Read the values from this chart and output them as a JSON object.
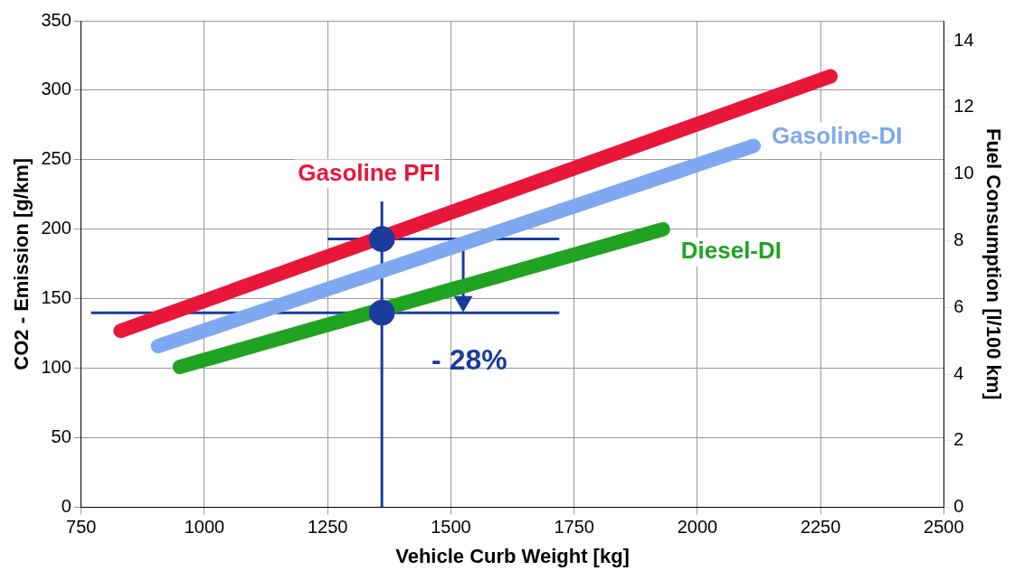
{
  "chart_data": {
    "type": "line",
    "xlabel": "Vehicle Curb Weight [kg]",
    "ylabel": "CO2 - Emission [g/km]",
    "y2label": "Fuel Consumption [l/100 km]",
    "xlim": [
      750,
      2500
    ],
    "xticks": [
      750,
      1000,
      1250,
      1500,
      1750,
      2000,
      2250,
      2500
    ],
    "ylim": [
      0,
      350
    ],
    "yticks": [
      0,
      50,
      100,
      150,
      200,
      250,
      300,
      350
    ],
    "y2lim": [
      0,
      14.6
    ],
    "y2ticks": [
      0,
      2,
      4,
      6,
      8,
      10,
      12,
      14
    ],
    "grid": true,
    "legend": false,
    "marker": "none",
    "line_style": "solid",
    "series": [
      {
        "name": "Gasoline PFI",
        "color": "#e8173a",
        "x": [
          830,
          2270
        ],
        "values": [
          127,
          310
        ]
      },
      {
        "name": "Gasoline-DI",
        "color": "#80a8f0",
        "x": [
          906,
          2114
        ],
        "values": [
          116,
          260
        ]
      },
      {
        "name": "Diesel-DI",
        "color": "#21a322",
        "x": [
          950,
          1930
        ],
        "values": [
          101,
          200
        ]
      },
      {
        "type": "line",
        "color": "#1b3c9c",
        "x": [
          1360,
          1360
        ],
        "values": [
          0,
          220
        ]
      },
      {
        "type": "line",
        "color": "#1b3c9c",
        "x": [
          1250,
          1720
        ],
        "values": [
          193,
          193
        ]
      },
      {
        "type": "line",
        "color": "#1b3c9c",
        "x": [
          770,
          1720
        ],
        "values": [
          140,
          140
        ]
      },
      {
        "type": "line",
        "color": "#1b3c9c",
        "marker": "triangle",
        "x": [
          1525,
          1525
        ],
        "values": [
          193,
          148
        ]
      },
      {
        "type": "scatter",
        "color": "#1b3c9c",
        "marker": "circle",
        "x": [
          1360,
          1360
        ],
        "values": [
          193,
          140
        ]
      }
    ],
    "annotations": [
      "- 28%"
    ]
  }
}
